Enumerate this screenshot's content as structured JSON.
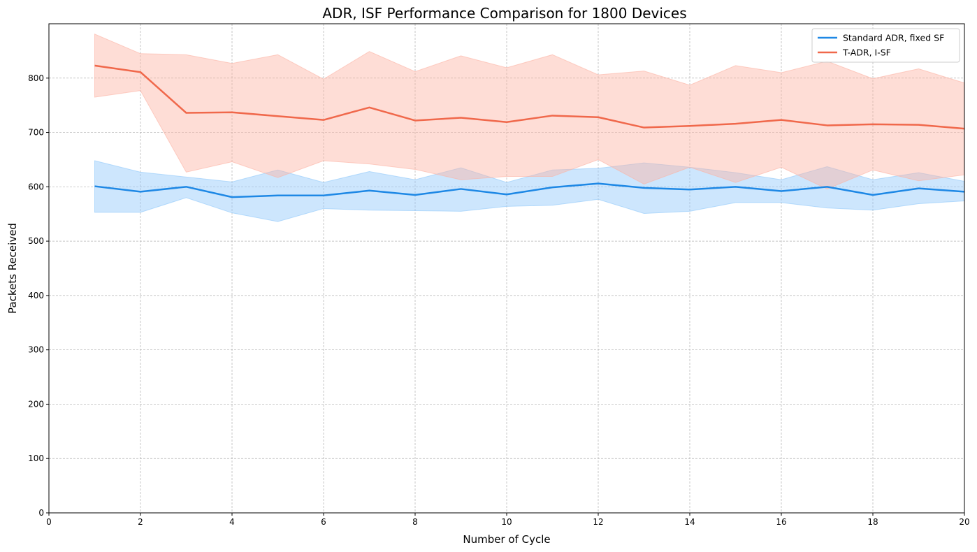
{
  "chart_data": {
    "type": "line",
    "title": "ADR, ISF Performance Comparison for 1800 Devices",
    "xlabel": "Number of Cycle",
    "ylabel": "Packets Received",
    "xlim": [
      0,
      20
    ],
    "ylim": [
      0,
      900
    ],
    "xticks": [
      0,
      2,
      4,
      6,
      8,
      10,
      12,
      14,
      16,
      18,
      20
    ],
    "yticks": [
      0,
      100,
      200,
      300,
      400,
      500,
      600,
      700,
      800
    ],
    "grid": true,
    "legend_position": "top-right",
    "x": [
      1,
      2,
      3,
      4,
      5,
      6,
      7,
      8,
      9,
      10,
      11,
      12,
      13,
      14,
      15,
      16,
      17,
      18,
      19,
      20
    ],
    "series": [
      {
        "name": "Standard ADR, fixed SF",
        "color": "#1e88e5",
        "fill_color": "#90c8fa",
        "values": [
          601,
          591,
          600,
          581,
          584,
          584,
          593,
          585,
          596,
          586,
          599,
          606,
          598,
          595,
          600,
          592,
          600,
          585,
          597,
          591
        ],
        "upper": [
          648,
          627,
          618,
          609,
          631,
          608,
          628,
          613,
          635,
          608,
          631,
          634,
          644,
          636,
          626,
          613,
          637,
          613,
          626,
          610
        ],
        "lower": [
          553,
          553,
          580,
          552,
          536,
          560,
          557,
          556,
          555,
          564,
          566,
          577,
          551,
          555,
          571,
          571,
          561,
          557,
          569,
          574
        ]
      },
      {
        "name": "T-ADR, I-SF",
        "color": "#f0684b",
        "fill_color": "#fcb3a3",
        "values": [
          823,
          811,
          736,
          737,
          730,
          723,
          746,
          722,
          727,
          719,
          731,
          728,
          709,
          712,
          716,
          723,
          713,
          715,
          714,
          707
        ],
        "upper": [
          881,
          845,
          843,
          827,
          843,
          798,
          849,
          812,
          841,
          819,
          843,
          806,
          813,
          787,
          823,
          810,
          831,
          799,
          817,
          791
        ],
        "lower": [
          765,
          777,
          627,
          646,
          617,
          648,
          642,
          632,
          613,
          619,
          619,
          650,
          605,
          636,
          608,
          636,
          596,
          631,
          611,
          622
        ]
      }
    ]
  }
}
